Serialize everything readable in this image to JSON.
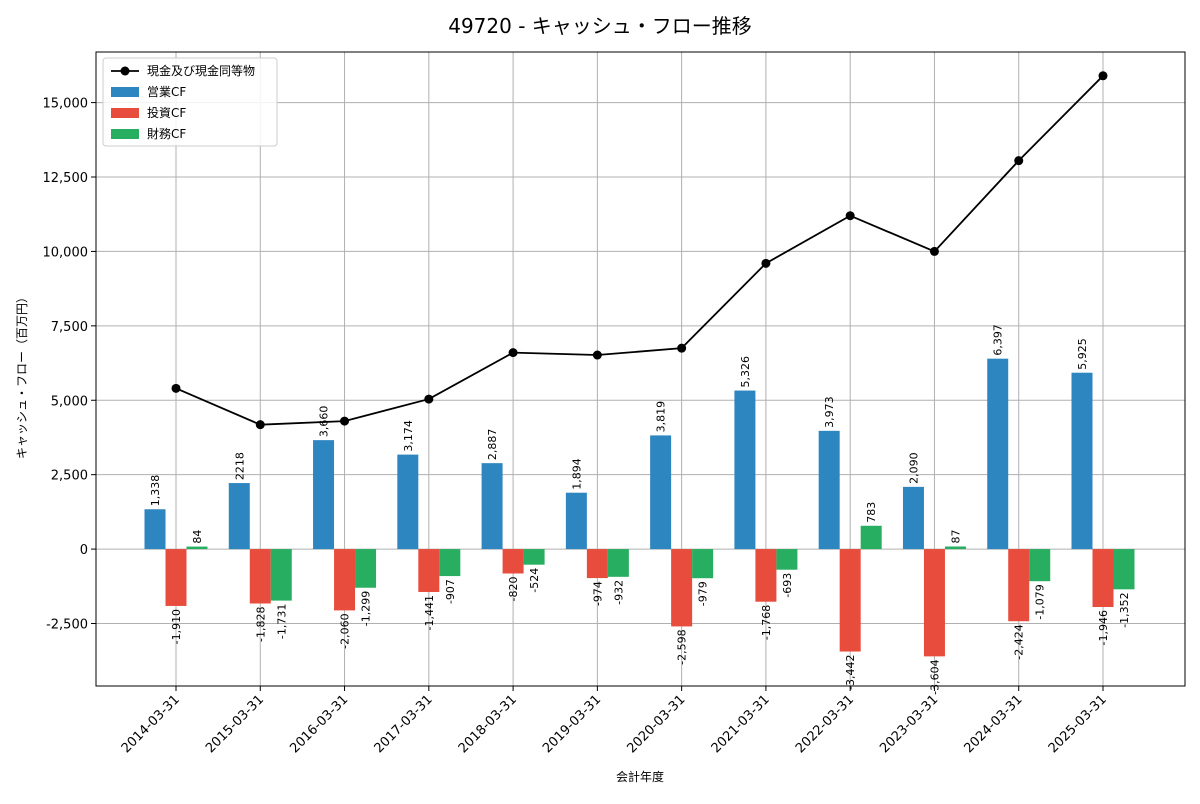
{
  "chart_data": {
    "type": "bar",
    "title": "49720 - キャッシュ・フロー推移",
    "xlabel": "会計年度",
    "ylabel": "キャッシュ・フロー（百万円）",
    "categories": [
      "2014-03-31",
      "2015-03-31",
      "2016-03-31",
      "2017-03-31",
      "2018-03-31",
      "2019-03-31",
      "2020-03-31",
      "2021-03-31",
      "2022-03-31",
      "2023-03-31",
      "2024-03-31",
      "2025-03-31"
    ],
    "ylim": [
      -4600,
      16700
    ],
    "yticks": [
      -2500,
      0,
      2500,
      5000,
      7500,
      10000,
      12500,
      15000
    ],
    "ytick_labels": [
      "-2,500",
      "0",
      "2,500",
      "5,000",
      "7,500",
      "10,000",
      "12,500",
      "15,000"
    ],
    "grid": true,
    "legend_position": "top-left",
    "series": [
      {
        "name": "営業CF",
        "kind": "bar",
        "color": "#2e86c1",
        "values": [
          1338,
          2218,
          3660,
          3174,
          2887,
          1894,
          3819,
          5326,
          3973,
          2090,
          6397,
          5925
        ],
        "labels": [
          "1,338",
          "2218",
          "3,660",
          "3,174",
          "2,887",
          "1,894",
          "3,819",
          "5,326",
          "3,973",
          "2,090",
          "6,397",
          "5,925"
        ]
      },
      {
        "name": "投資CF",
        "kind": "bar",
        "color": "#e74c3c",
        "values": [
          -1910,
          -1828,
          -2060,
          -1441,
          -820,
          -974,
          -2598,
          -1768,
          -3442,
          -3604,
          -2424,
          -1946
        ],
        "labels": [
          "-1,910",
          "-1,828",
          "-2,060",
          "-1,441",
          "-820",
          "-974",
          "-2,598",
          "-1,768",
          "-3,442",
          "-3,604",
          "-2,424",
          "-1,946"
        ]
      },
      {
        "name": "財務CF",
        "kind": "bar",
        "color": "#27ae60",
        "values": [
          84,
          -1731,
          -1299,
          -907,
          -524,
          -932,
          -979,
          -693,
          783,
          87,
          -1079,
          -1352
        ],
        "labels": [
          "84",
          "-1,731",
          "-1,299",
          "-907",
          "-524",
          "-932",
          "-979",
          "-693",
          "783",
          "87",
          "-1,079",
          "-1,352"
        ]
      },
      {
        "name": "現金及び現金同等物",
        "kind": "line",
        "color": "#000000",
        "values": [
          5400,
          4180,
          4300,
          5040,
          6600,
          6520,
          6750,
          9600,
          11200,
          10000,
          13050,
          15900
        ]
      }
    ]
  }
}
